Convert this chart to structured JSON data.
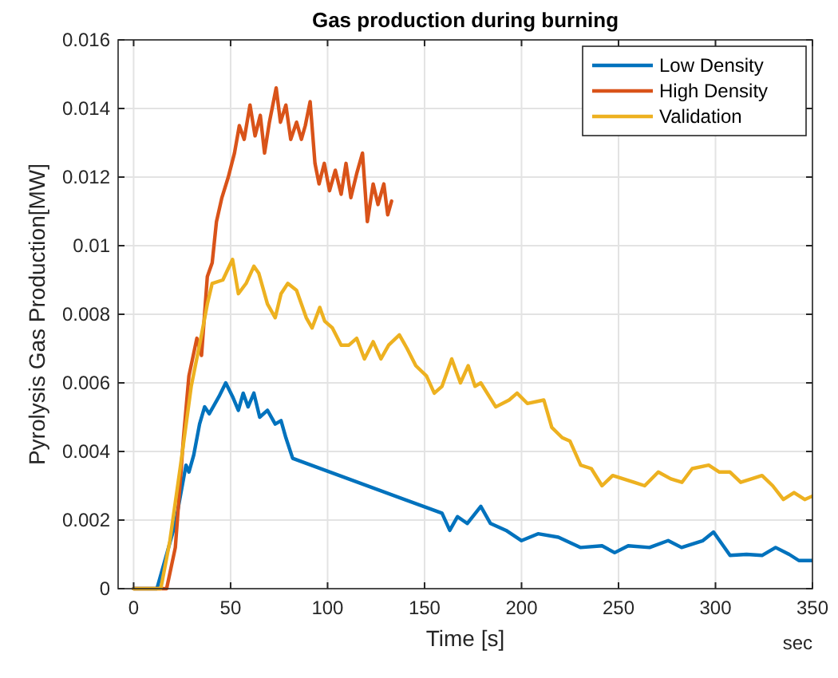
{
  "chart_data": {
    "type": "line",
    "title": "Gas production during burning",
    "xlabel": "Time [s]",
    "ylabel": "Pyrolysis Gas Production[MW]",
    "annotations": [
      "sec"
    ],
    "xlim": [
      -8,
      350
    ],
    "ylim": [
      0,
      0.016
    ],
    "xticks": [
      0,
      50,
      100,
      150,
      200,
      250,
      300,
      350
    ],
    "yticks": [
      0,
      0.002,
      0.004,
      0.006,
      0.008,
      0.01,
      0.012,
      0.014,
      0.016
    ],
    "grid": true,
    "legend": "top right",
    "line_style": "solid",
    "marker": "none",
    "series": [
      {
        "name": "Low Density",
        "color": "#0072bd",
        "x": [
          0,
          12,
          21.5,
          27,
          28.5,
          31,
          34,
          36.6,
          39,
          44,
          47.5,
          51,
          54,
          56.5,
          59,
          62,
          65,
          69,
          73,
          76,
          78.5,
          82,
          159,
          163,
          167,
          172,
          179,
          184,
          192,
          200,
          208.5,
          219,
          230.5,
          241.5,
          248,
          255,
          266,
          275.6,
          282.5,
          293.5,
          299,
          307.5,
          316,
          324,
          331,
          338,
          343,
          350
        ],
        "values": [
          0,
          0,
          0.0019,
          0.0036,
          0.0034,
          0.0039,
          0.0048,
          0.0053,
          0.0051,
          0.0056,
          0.006,
          0.0056,
          0.0052,
          0.0057,
          0.0053,
          0.0057,
          0.005,
          0.0052,
          0.0048,
          0.0049,
          0.0044,
          0.0038,
          0.0022,
          0.0017,
          0.0021,
          0.0019,
          0.0024,
          0.0019,
          0.0017,
          0.0014,
          0.0016,
          0.0015,
          0.0012,
          0.00125,
          0.00105,
          0.00125,
          0.0012,
          0.0014,
          0.0012,
          0.0014,
          0.00165,
          0.00097,
          0.001,
          0.00097,
          0.0012,
          0.001,
          0.00082,
          0.00082
        ]
      },
      {
        "name": "High Density",
        "color": "#d95319",
        "x": [
          0,
          17,
          21.5,
          25.7,
          28.5,
          32.6,
          35,
          38,
          40.5,
          42.7,
          45.5,
          48.8,
          52,
          54.5,
          57,
          60,
          62.6,
          65.3,
          67.5,
          70,
          73.5,
          75.7,
          78.5,
          81,
          84,
          86.5,
          88.5,
          91,
          93.5,
          95.6,
          98.3,
          101,
          104,
          107,
          109.5,
          112,
          115,
          118,
          120.5,
          123.5,
          126,
          129,
          131,
          133
        ],
        "values": [
          0,
          0,
          0.0012,
          0.0044,
          0.0062,
          0.0073,
          0.0068,
          0.0091,
          0.0095,
          0.0107,
          0.0114,
          0.012,
          0.0127,
          0.0135,
          0.0131,
          0.0141,
          0.0132,
          0.0138,
          0.0127,
          0.0136,
          0.0146,
          0.0136,
          0.0141,
          0.0131,
          0.0136,
          0.0131,
          0.0135,
          0.0142,
          0.0124,
          0.0118,
          0.0124,
          0.0116,
          0.0122,
          0.0115,
          0.0124,
          0.0114,
          0.0121,
          0.0127,
          0.0107,
          0.0118,
          0.0112,
          0.0118,
          0.0109,
          0.0113
        ]
      },
      {
        "name": "Validation",
        "color": "#edb120",
        "x": [
          0,
          14,
          18.7,
          24.2,
          29.7,
          35,
          38,
          40.5,
          46,
          51,
          54,
          58,
          62,
          64.5,
          69,
          73,
          76,
          79.5,
          84,
          89,
          92,
          96,
          98.5,
          102.5,
          107,
          111,
          115,
          119,
          123.5,
          127.5,
          131.5,
          137,
          141,
          145.5,
          151,
          155,
          159,
          164,
          168.5,
          172.5,
          176,
          179,
          186.7,
          193.6,
          197.7,
          203,
          211.5,
          215.6,
          221,
          225,
          230.5,
          236,
          241.5,
          247,
          252.5,
          258,
          263.5,
          270.5,
          277,
          282.7,
          288,
          296.5,
          302,
          307.5,
          313,
          318.5,
          324,
          329.5,
          335,
          340.5,
          346,
          350
        ],
        "values": [
          0,
          0,
          0.0014,
          0.0036,
          0.0059,
          0.0074,
          0.0083,
          0.0089,
          0.009,
          0.0096,
          0.0086,
          0.0089,
          0.0094,
          0.0092,
          0.0083,
          0.0079,
          0.0086,
          0.0089,
          0.0087,
          0.0079,
          0.0076,
          0.0082,
          0.0078,
          0.0076,
          0.0071,
          0.0071,
          0.0073,
          0.0067,
          0.0072,
          0.0067,
          0.0071,
          0.0074,
          0.007,
          0.0065,
          0.0062,
          0.0057,
          0.0059,
          0.0067,
          0.006,
          0.0065,
          0.0059,
          0.006,
          0.0053,
          0.0055,
          0.0057,
          0.0054,
          0.0055,
          0.0047,
          0.0044,
          0.0043,
          0.0036,
          0.0035,
          0.003,
          0.0033,
          0.0032,
          0.0031,
          0.003,
          0.0034,
          0.0032,
          0.0031,
          0.0035,
          0.0036,
          0.0034,
          0.0034,
          0.0031,
          0.0032,
          0.0033,
          0.003,
          0.0026,
          0.0028,
          0.0026,
          0.0027
        ]
      }
    ]
  }
}
